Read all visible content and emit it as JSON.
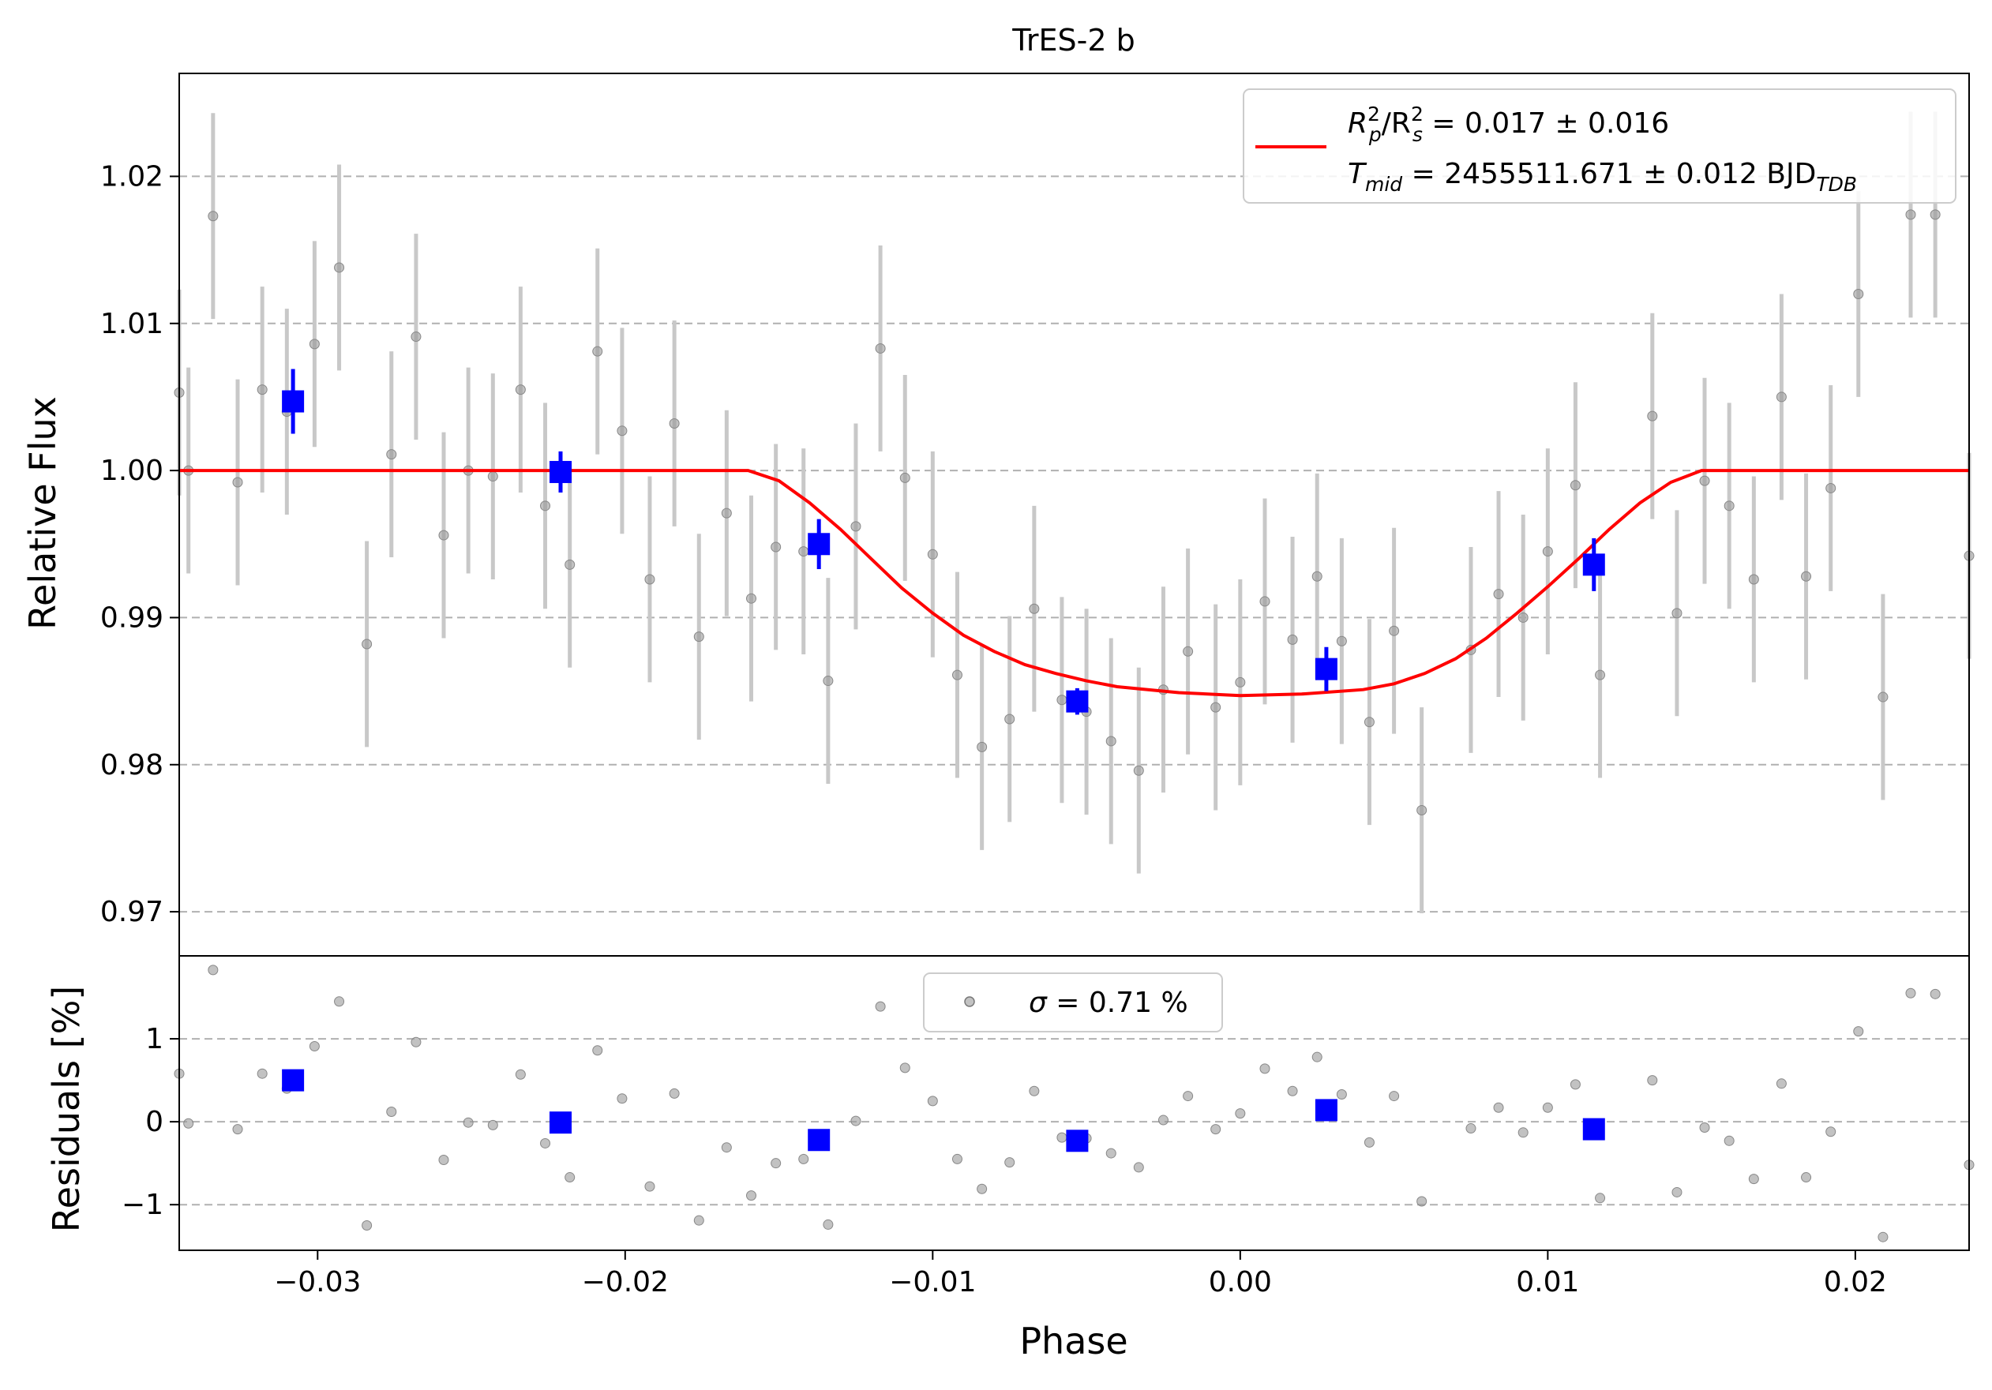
{
  "chart_data": [
    {
      "panel": "main",
      "type": "scatter",
      "title": "TrES-2 b",
      "xlabel": "Phase",
      "ylabel": "Relative Flux",
      "xlim": [
        -0.0345,
        0.0237
      ],
      "ylim": [
        0.967,
        1.027
      ],
      "grid": "horizontal dashed",
      "legend_position": "top-right",
      "xticks": [
        "−0.03",
        "−0.02",
        "−0.01",
        "0.00",
        "0.01",
        "0.02"
      ],
      "xtick_values": [
        -0.03,
        -0.02,
        -0.01,
        0.0,
        0.01,
        0.02
      ],
      "yticks": [
        "0.97",
        "0.98",
        "0.99",
        "1.00",
        "1.01",
        "1.02"
      ],
      "ytick_values": [
        0.97,
        0.98,
        0.99,
        1.0,
        1.01,
        1.02
      ],
      "legend": {
        "line1_parts": [
          "R",
          "p",
          "2",
          "/R",
          "s",
          "2",
          " = 0.017 ± 0.016"
        ],
        "line2_parts": [
          "T",
          "mid",
          " = 2455511.671 ± 0.012 BJD",
          "TDB"
        ]
      },
      "colors": {
        "model": "#ff0000",
        "binned": "#0000ff",
        "raw": "#999999"
      },
      "model": {
        "x": [
          -0.0345,
          -0.016,
          -0.015,
          -0.014,
          -0.013,
          -0.012,
          -0.011,
          -0.01,
          -0.009,
          -0.008,
          -0.007,
          -0.006,
          -0.005,
          -0.004,
          -0.002,
          0.0,
          0.002,
          0.004,
          0.005,
          0.006,
          0.007,
          0.008,
          0.009,
          0.01,
          0.011,
          0.012,
          0.013,
          0.014,
          0.015,
          0.016,
          0.0237
        ],
        "y": [
          1.0,
          1.0,
          0.9993,
          0.9978,
          0.996,
          0.994,
          0.992,
          0.9903,
          0.9888,
          0.9877,
          0.9868,
          0.9862,
          0.9857,
          0.9853,
          0.9849,
          0.9847,
          0.9848,
          0.9851,
          0.9855,
          0.9862,
          0.9872,
          0.9886,
          0.9903,
          0.9921,
          0.994,
          0.996,
          0.9978,
          0.9992,
          1.0,
          1.0,
          1.0
        ]
      },
      "raw_points": [
        {
          "x": -0.0345,
          "y": 1.0053,
          "err": 0.007
        },
        {
          "x": -0.0342,
          "y": 1.0,
          "err": 0.007
        },
        {
          "x": -0.0334,
          "y": 1.0173,
          "err": 0.007
        },
        {
          "x": -0.0326,
          "y": 0.9992,
          "err": 0.007
        },
        {
          "x": -0.0318,
          "y": 1.0055,
          "err": 0.007
        },
        {
          "x": -0.031,
          "y": 1.004,
          "err": 0.007
        },
        {
          "x": -0.0301,
          "y": 1.0086,
          "err": 0.007
        },
        {
          "x": -0.0293,
          "y": 1.0138,
          "err": 0.007
        },
        {
          "x": -0.0284,
          "y": 0.9882,
          "err": 0.007
        },
        {
          "x": -0.0276,
          "y": 1.0011,
          "err": 0.007
        },
        {
          "x": -0.0268,
          "y": 1.0091,
          "err": 0.007
        },
        {
          "x": -0.0259,
          "y": 0.9956,
          "err": 0.007
        },
        {
          "x": -0.0251,
          "y": 1.0,
          "err": 0.007
        },
        {
          "x": -0.0243,
          "y": 0.9996,
          "err": 0.007
        },
        {
          "x": -0.0234,
          "y": 1.0055,
          "err": 0.007
        },
        {
          "x": -0.0226,
          "y": 0.9976,
          "err": 0.007
        },
        {
          "x": -0.0218,
          "y": 0.9936,
          "err": 0.007
        },
        {
          "x": -0.0209,
          "y": 1.0081,
          "err": 0.007
        },
        {
          "x": -0.0201,
          "y": 1.0027,
          "err": 0.007
        },
        {
          "x": -0.0192,
          "y": 0.9926,
          "err": 0.007
        },
        {
          "x": -0.0184,
          "y": 1.0032,
          "err": 0.007
        },
        {
          "x": -0.0176,
          "y": 0.9887,
          "err": 0.007
        },
        {
          "x": -0.0167,
          "y": 0.9971,
          "err": 0.007
        },
        {
          "x": -0.0159,
          "y": 0.9913,
          "err": 0.007
        },
        {
          "x": -0.0151,
          "y": 0.9948,
          "err": 0.007
        },
        {
          "x": -0.0142,
          "y": 0.9945,
          "err": 0.007
        },
        {
          "x": -0.0134,
          "y": 0.9857,
          "err": 0.007
        },
        {
          "x": -0.0125,
          "y": 0.9962,
          "err": 0.007
        },
        {
          "x": -0.0117,
          "y": 1.0083,
          "err": 0.007
        },
        {
          "x": -0.0109,
          "y": 0.9995,
          "err": 0.007
        },
        {
          "x": -0.01,
          "y": 0.9943,
          "err": 0.007
        },
        {
          "x": -0.0092,
          "y": 0.9861,
          "err": 0.007
        },
        {
          "x": -0.0084,
          "y": 0.9812,
          "err": 0.007
        },
        {
          "x": -0.0075,
          "y": 0.9831,
          "err": 0.007
        },
        {
          "x": -0.0067,
          "y": 0.9906,
          "err": 0.007
        },
        {
          "x": -0.0058,
          "y": 0.9844,
          "err": 0.007
        },
        {
          "x": -0.005,
          "y": 0.9836,
          "err": 0.007
        },
        {
          "x": -0.0042,
          "y": 0.9816,
          "err": 0.007
        },
        {
          "x": -0.0033,
          "y": 0.9796,
          "err": 0.007
        },
        {
          "x": -0.0025,
          "y": 0.9851,
          "err": 0.007
        },
        {
          "x": -0.0017,
          "y": 0.9877,
          "err": 0.007
        },
        {
          "x": -0.0008,
          "y": 0.9839,
          "err": 0.007
        },
        {
          "x": 0.0,
          "y": 0.9856,
          "err": 0.007
        },
        {
          "x": 0.0008,
          "y": 0.9911,
          "err": 0.007
        },
        {
          "x": 0.0017,
          "y": 0.9885,
          "err": 0.007
        },
        {
          "x": 0.0025,
          "y": 0.9928,
          "err": 0.007
        },
        {
          "x": 0.0033,
          "y": 0.9884,
          "err": 0.007
        },
        {
          "x": 0.0042,
          "y": 0.9829,
          "err": 0.007
        },
        {
          "x": 0.005,
          "y": 0.9891,
          "err": 0.007
        },
        {
          "x": 0.0059,
          "y": 0.9769,
          "err": 0.007
        },
        {
          "x": 0.0075,
          "y": 0.9878,
          "err": 0.007
        },
        {
          "x": 0.0084,
          "y": 0.9916,
          "err": 0.007
        },
        {
          "x": 0.0092,
          "y": 0.99,
          "err": 0.007
        },
        {
          "x": 0.01,
          "y": 0.9945,
          "err": 0.007
        },
        {
          "x": 0.0109,
          "y": 0.999,
          "err": 0.007
        },
        {
          "x": 0.0117,
          "y": 0.9861,
          "err": 0.007
        },
        {
          "x": 0.0134,
          "y": 1.0037,
          "err": 0.007
        },
        {
          "x": 0.0142,
          "y": 0.9903,
          "err": 0.007
        },
        {
          "x": 0.0151,
          "y": 0.9993,
          "err": 0.007
        },
        {
          "x": 0.0159,
          "y": 0.9976,
          "err": 0.007
        },
        {
          "x": 0.0167,
          "y": 0.9926,
          "err": 0.007
        },
        {
          "x": 0.0176,
          "y": 1.005,
          "err": 0.007
        },
        {
          "x": 0.0184,
          "y": 0.9928,
          "err": 0.007
        },
        {
          "x": 0.0192,
          "y": 0.9988,
          "err": 0.007
        },
        {
          "x": 0.0201,
          "y": 1.012,
          "err": 0.007
        },
        {
          "x": 0.0209,
          "y": 0.9846,
          "err": 0.007
        },
        {
          "x": 0.0218,
          "y": 1.0174,
          "err": 0.007
        },
        {
          "x": 0.0226,
          "y": 1.0174,
          "err": 0.007
        },
        {
          "x": 0.0237,
          "y": 0.9942,
          "err": 0.007
        }
      ],
      "binned_points": [
        {
          "x": -0.0308,
          "y": 1.0047,
          "err": 0.0022
        },
        {
          "x": -0.0221,
          "y": 0.9999,
          "err": 0.0014
        },
        {
          "x": -0.0137,
          "y": 0.995,
          "err": 0.0017
        },
        {
          "x": -0.0053,
          "y": 0.9843,
          "err": 0.0009
        },
        {
          "x": 0.0028,
          "y": 0.9865,
          "err": 0.0015
        },
        {
          "x": 0.0115,
          "y": 0.9936,
          "err": 0.0018
        }
      ]
    },
    {
      "panel": "residuals",
      "type": "scatter",
      "xlabel": "Phase",
      "ylabel": "Residuals [%]",
      "xlim": [
        -0.0345,
        0.0237
      ],
      "ylim": [
        -1.55,
        2.0
      ],
      "grid": "horizontal dashed",
      "legend_position": "top-center",
      "yticks": [
        "−1",
        "0",
        "1"
      ],
      "ytick_values": [
        -1,
        0,
        1
      ],
      "legend": {
        "sigma_symbol": "σ",
        "sigma_text": " = 0.71 %"
      },
      "raw_points": [
        {
          "x": -0.0345,
          "y": 0.58
        },
        {
          "x": -0.0342,
          "y": -0.02
        },
        {
          "x": -0.0334,
          "y": 1.83
        },
        {
          "x": -0.0326,
          "y": -0.09
        },
        {
          "x": -0.0318,
          "y": 0.58
        },
        {
          "x": -0.031,
          "y": 0.4
        },
        {
          "x": -0.0301,
          "y": 0.91
        },
        {
          "x": -0.0293,
          "y": 1.45
        },
        {
          "x": -0.0284,
          "y": -1.25
        },
        {
          "x": -0.0276,
          "y": 0.12
        },
        {
          "x": -0.0268,
          "y": 0.96
        },
        {
          "x": -0.0259,
          "y": -0.46
        },
        {
          "x": -0.0251,
          "y": -0.01
        },
        {
          "x": -0.0243,
          "y": -0.04
        },
        {
          "x": -0.0234,
          "y": 0.57
        },
        {
          "x": -0.0226,
          "y": -0.26
        },
        {
          "x": -0.0218,
          "y": -0.67
        },
        {
          "x": -0.0209,
          "y": 0.86
        },
        {
          "x": -0.0201,
          "y": 0.28
        },
        {
          "x": -0.0192,
          "y": -0.78
        },
        {
          "x": -0.0184,
          "y": 0.34
        },
        {
          "x": -0.0176,
          "y": -1.19
        },
        {
          "x": -0.0167,
          "y": -0.31
        },
        {
          "x": -0.0159,
          "y": -0.89
        },
        {
          "x": -0.0151,
          "y": -0.5
        },
        {
          "x": -0.0142,
          "y": -0.45
        },
        {
          "x": -0.0134,
          "y": -1.24
        },
        {
          "x": -0.0125,
          "y": 0.01
        },
        {
          "x": -0.0117,
          "y": 1.39
        },
        {
          "x": -0.0109,
          "y": 0.65
        },
        {
          "x": -0.01,
          "y": 0.25
        },
        {
          "x": -0.0092,
          "y": -0.45
        },
        {
          "x": -0.0084,
          "y": -0.81
        },
        {
          "x": -0.0075,
          "y": -0.49
        },
        {
          "x": -0.0067,
          "y": 0.37
        },
        {
          "x": -0.0058,
          "y": -0.19
        },
        {
          "x": -0.005,
          "y": -0.2
        },
        {
          "x": -0.0042,
          "y": -0.38
        },
        {
          "x": -0.0033,
          "y": -0.55
        },
        {
          "x": -0.0025,
          "y": 0.02
        },
        {
          "x": -0.0017,
          "y": 0.31
        },
        {
          "x": -0.0008,
          "y": -0.09
        },
        {
          "x": 0.0,
          "y": 0.1
        },
        {
          "x": 0.0008,
          "y": 0.64
        },
        {
          "x": 0.0017,
          "y": 0.37
        },
        {
          "x": 0.0025,
          "y": 0.78
        },
        {
          "x": 0.0033,
          "y": 0.33
        },
        {
          "x": 0.0042,
          "y": -0.25
        },
        {
          "x": 0.005,
          "y": 0.31
        },
        {
          "x": 0.0059,
          "y": -0.96
        },
        {
          "x": 0.0075,
          "y": -0.08
        },
        {
          "x": 0.0084,
          "y": 0.17
        },
        {
          "x": 0.0092,
          "y": -0.13
        },
        {
          "x": 0.01,
          "y": 0.17
        },
        {
          "x": 0.0109,
          "y": 0.45
        },
        {
          "x": 0.0117,
          "y": -0.92
        },
        {
          "x": 0.0134,
          "y": 0.5
        },
        {
          "x": 0.0142,
          "y": -0.85
        },
        {
          "x": 0.0151,
          "y": -0.07
        },
        {
          "x": 0.0159,
          "y": -0.23
        },
        {
          "x": 0.0167,
          "y": -0.69
        },
        {
          "x": 0.0176,
          "y": 0.46
        },
        {
          "x": 0.0184,
          "y": -0.67
        },
        {
          "x": 0.0192,
          "y": -0.12
        },
        {
          "x": 0.0201,
          "y": 1.09
        },
        {
          "x": 0.0209,
          "y": -1.39
        },
        {
          "x": 0.0218,
          "y": 1.55
        },
        {
          "x": 0.0226,
          "y": 1.54
        },
        {
          "x": 0.0237,
          "y": -0.52
        }
      ],
      "binned_points": [
        {
          "x": -0.0308,
          "y": 0.5
        },
        {
          "x": -0.0221,
          "y": -0.01
        },
        {
          "x": -0.0137,
          "y": -0.22
        },
        {
          "x": -0.0053,
          "y": -0.23
        },
        {
          "x": 0.0028,
          "y": 0.14
        },
        {
          "x": 0.0115,
          "y": -0.09
        }
      ]
    }
  ]
}
